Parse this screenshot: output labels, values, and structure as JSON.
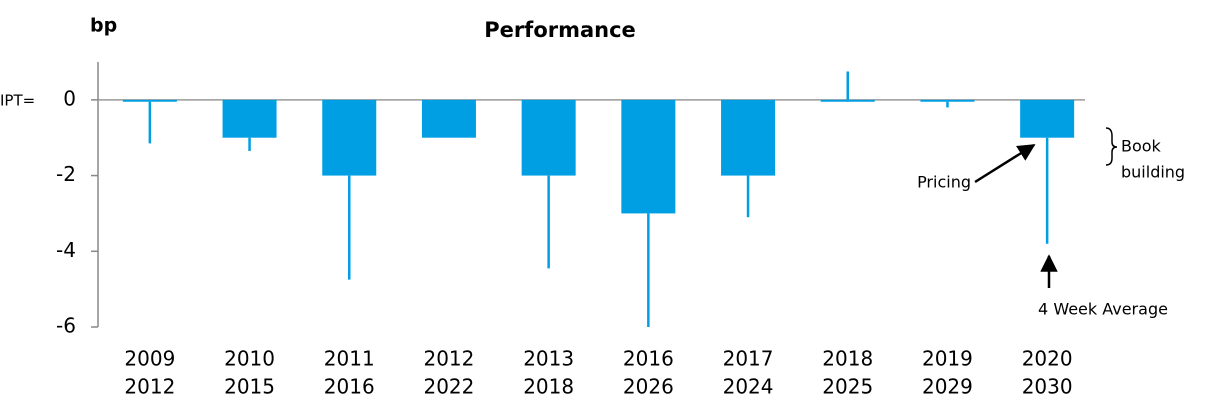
{
  "chart_data": {
    "type": "bar",
    "title": "Performance",
    "y_axis_label": "bp",
    "zero_label": "IPT=",
    "categories": [
      [
        "2009",
        "2012"
      ],
      [
        "2010",
        "2015"
      ],
      [
        "2011",
        "2016"
      ],
      [
        "2012",
        "2022"
      ],
      [
        "2013",
        "2018"
      ],
      [
        "2016",
        "2026"
      ],
      [
        "2017",
        "2024"
      ],
      [
        "2018",
        "2025"
      ],
      [
        "2019",
        "2029"
      ],
      [
        "2020",
        "2030"
      ]
    ],
    "series": [
      {
        "name": "Pricing",
        "color": "#009fe3",
        "values": [
          -0.05,
          -1,
          -2,
          -1,
          -2,
          -3,
          -2,
          -0.05,
          -0.05,
          -1
        ]
      },
      {
        "name": "4 Week Average",
        "color": "#009fe3",
        "values": [
          -1.15,
          -1.35,
          -4.75,
          -1,
          -4.45,
          -6,
          -3.1,
          0.75,
          -0.2,
          -3.8
        ]
      }
    ],
    "annotation": [
      "Book",
      "building"
    ],
    "ylim": [
      -6,
      1
    ],
    "yticks": [
      0,
      -2,
      -4,
      -6
    ]
  }
}
